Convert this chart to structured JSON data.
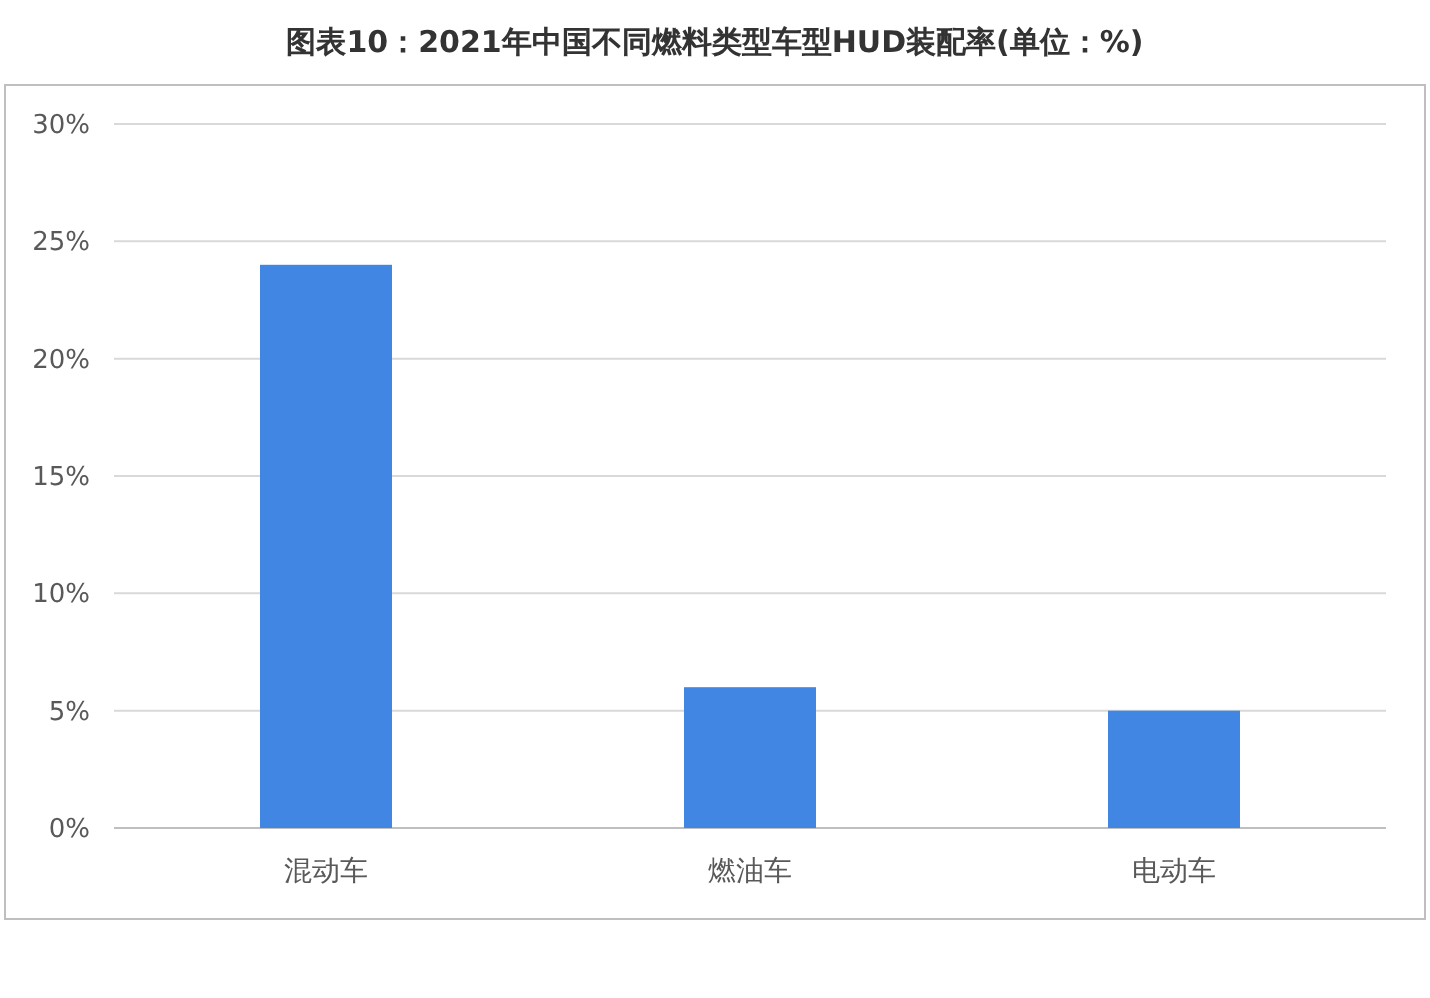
{
  "chart_data": {
    "type": "bar",
    "title": "图表10：2021年中国不同燃料类型车型HUD装配率(单位：%)",
    "categories": [
      "混动车",
      "燃油车",
      "电动车"
    ],
    "values": [
      24,
      6,
      5
    ],
    "color": "#4286e3",
    "ylim": [
      0,
      30
    ],
    "yticks": [
      {
        "value": 0,
        "label": "0%"
      },
      {
        "value": 5,
        "label": "5%"
      },
      {
        "value": 10,
        "label": "10%"
      },
      {
        "value": 15,
        "label": "15%"
      },
      {
        "value": 20,
        "label": "20%"
      },
      {
        "value": 25,
        "label": "25%"
      },
      {
        "value": 30,
        "label": "30%"
      }
    ],
    "grid": "y"
  }
}
